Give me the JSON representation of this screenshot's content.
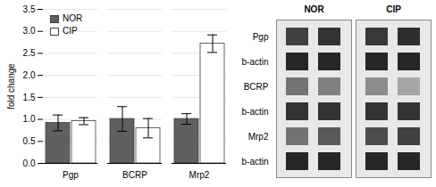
{
  "chart_data": [
    {
      "type": "bar",
      "categories": [
        "Pgp",
        "BCRP",
        "Mrp2"
      ],
      "series": [
        {
          "name": "NOR",
          "color": "#606060",
          "values": [
            0.92,
            1.01,
            1.01
          ],
          "errors": [
            0.18,
            0.28,
            0.12
          ]
        },
        {
          "name": "CIP",
          "color": "#ffffff",
          "values": [
            0.96,
            0.8,
            2.72
          ],
          "errors": [
            0.08,
            0.22,
            0.2
          ]
        }
      ],
      "ylabel": "fold change",
      "ylim": [
        0,
        3.5
      ],
      "yticks": [
        {
          "value": 0,
          "label": "0.0"
        },
        0.5,
        {
          "value": 1,
          "label": "1.0"
        },
        1.5,
        {
          "value": 2,
          "label": "2.0"
        },
        2.5,
        {
          "value": 3,
          "label": "3.0"
        },
        3.5
      ],
      "grid": true,
      "legend": "upper left"
    },
    {
      "type": "blot",
      "categories": [
        "Pgp",
        "b-actin",
        "BCRP",
        "b-actin",
        "Mrp2",
        "b-actin"
      ],
      "series": [
        {
          "name": "NOR",
          "colors": [
            "#404040",
            "#333333",
            "#262626",
            "#262626",
            "#737373",
            "#808080",
            "#333333",
            "#333333",
            "#737373",
            "#595959",
            "#262626",
            "#262626"
          ]
        },
        {
          "name": "CIP",
          "colors": [
            "#383838",
            "#2e2e2e",
            "#262626",
            "#262626",
            "#8c8c8c",
            "#a6a6a6",
            "#333333",
            "#333333",
            "#4d4d4d",
            "#404040",
            "#262626",
            "#262626"
          ]
        }
      ]
    }
  ]
}
